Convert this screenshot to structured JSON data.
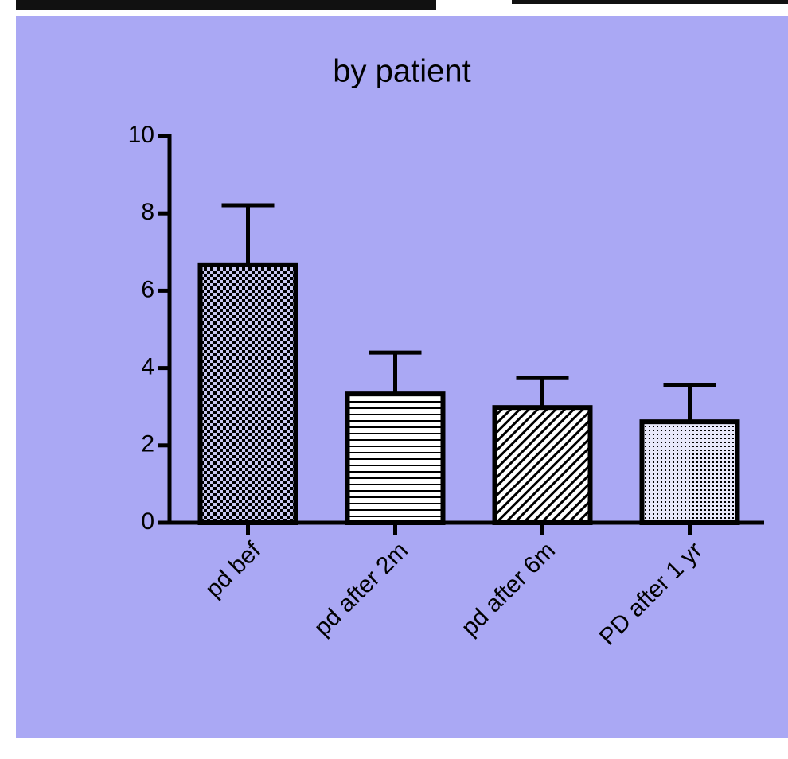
{
  "chart_data": {
    "type": "bar",
    "title": "by patient",
    "categories": [
      "pd bef",
      "pd after 2m",
      "pd after 6m",
      "PD after 1 yr"
    ],
    "values": [
      6.67,
      3.33,
      2.98,
      2.61
    ],
    "errors": [
      1.54,
      1.07,
      0.76,
      0.95
    ],
    "color": "#000000",
    "ylim": [
      0,
      10
    ],
    "yticks": [
      0,
      2,
      4,
      6,
      8,
      10
    ],
    "grid": false
  }
}
